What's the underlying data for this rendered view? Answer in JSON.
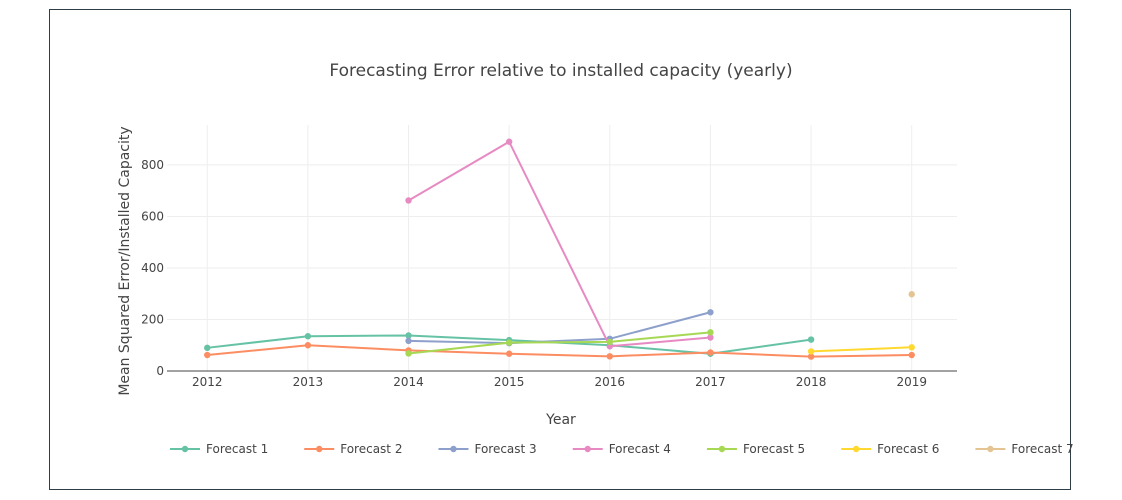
{
  "chart_data": {
    "type": "line",
    "title": "Forecasting Error relative to installed capacity (yearly)",
    "xlabel": "Year",
    "ylabel": "Mean Squared Error/Installed Capacity",
    "x": [
      2012,
      2013,
      2014,
      2015,
      2016,
      2017,
      2018,
      2019
    ],
    "xlim": [
      2011.6,
      2019.45
    ],
    "ylim": [
      0,
      955
    ],
    "yticks": [
      0,
      200,
      400,
      600,
      800
    ],
    "grid": true,
    "legend_position": "bottom",
    "series": [
      {
        "name": "Forecast 1",
        "color": "#66c2a5",
        "points": [
          [
            2012,
            90
          ],
          [
            2013,
            135
          ],
          [
            2014,
            138
          ],
          [
            2015,
            120
          ],
          [
            2016,
            100
          ],
          [
            2017,
            67
          ],
          [
            2018,
            122
          ]
        ]
      },
      {
        "name": "Forecast 2",
        "color": "#fc8d62",
        "points": [
          [
            2012,
            62
          ],
          [
            2013,
            100
          ],
          [
            2014,
            80
          ],
          [
            2015,
            67
          ],
          [
            2016,
            57
          ],
          [
            2017,
            72
          ],
          [
            2018,
            56
          ],
          [
            2019,
            62
          ]
        ]
      },
      {
        "name": "Forecast 3",
        "color": "#8da0cb",
        "points": [
          [
            2014,
            117
          ],
          [
            2015,
            108
          ],
          [
            2016,
            125
          ],
          [
            2017,
            228
          ]
        ]
      },
      {
        "name": "Forecast 4",
        "color": "#e78ac3",
        "points": [
          [
            2014,
            662
          ],
          [
            2015,
            890
          ],
          [
            2016,
            96
          ],
          [
            2017,
            130
          ]
        ]
      },
      {
        "name": "Forecast 5",
        "color": "#a6d854",
        "points": [
          [
            2014,
            68
          ],
          [
            2015,
            110
          ],
          [
            2016,
            113
          ],
          [
            2017,
            150
          ]
        ]
      },
      {
        "name": "Forecast 6",
        "color": "#ffd92f",
        "points": [
          [
            2018,
            76
          ],
          [
            2019,
            92
          ]
        ]
      },
      {
        "name": "Forecast 7",
        "color": "#e5c494",
        "points": [
          [
            2019,
            298
          ]
        ]
      }
    ]
  }
}
